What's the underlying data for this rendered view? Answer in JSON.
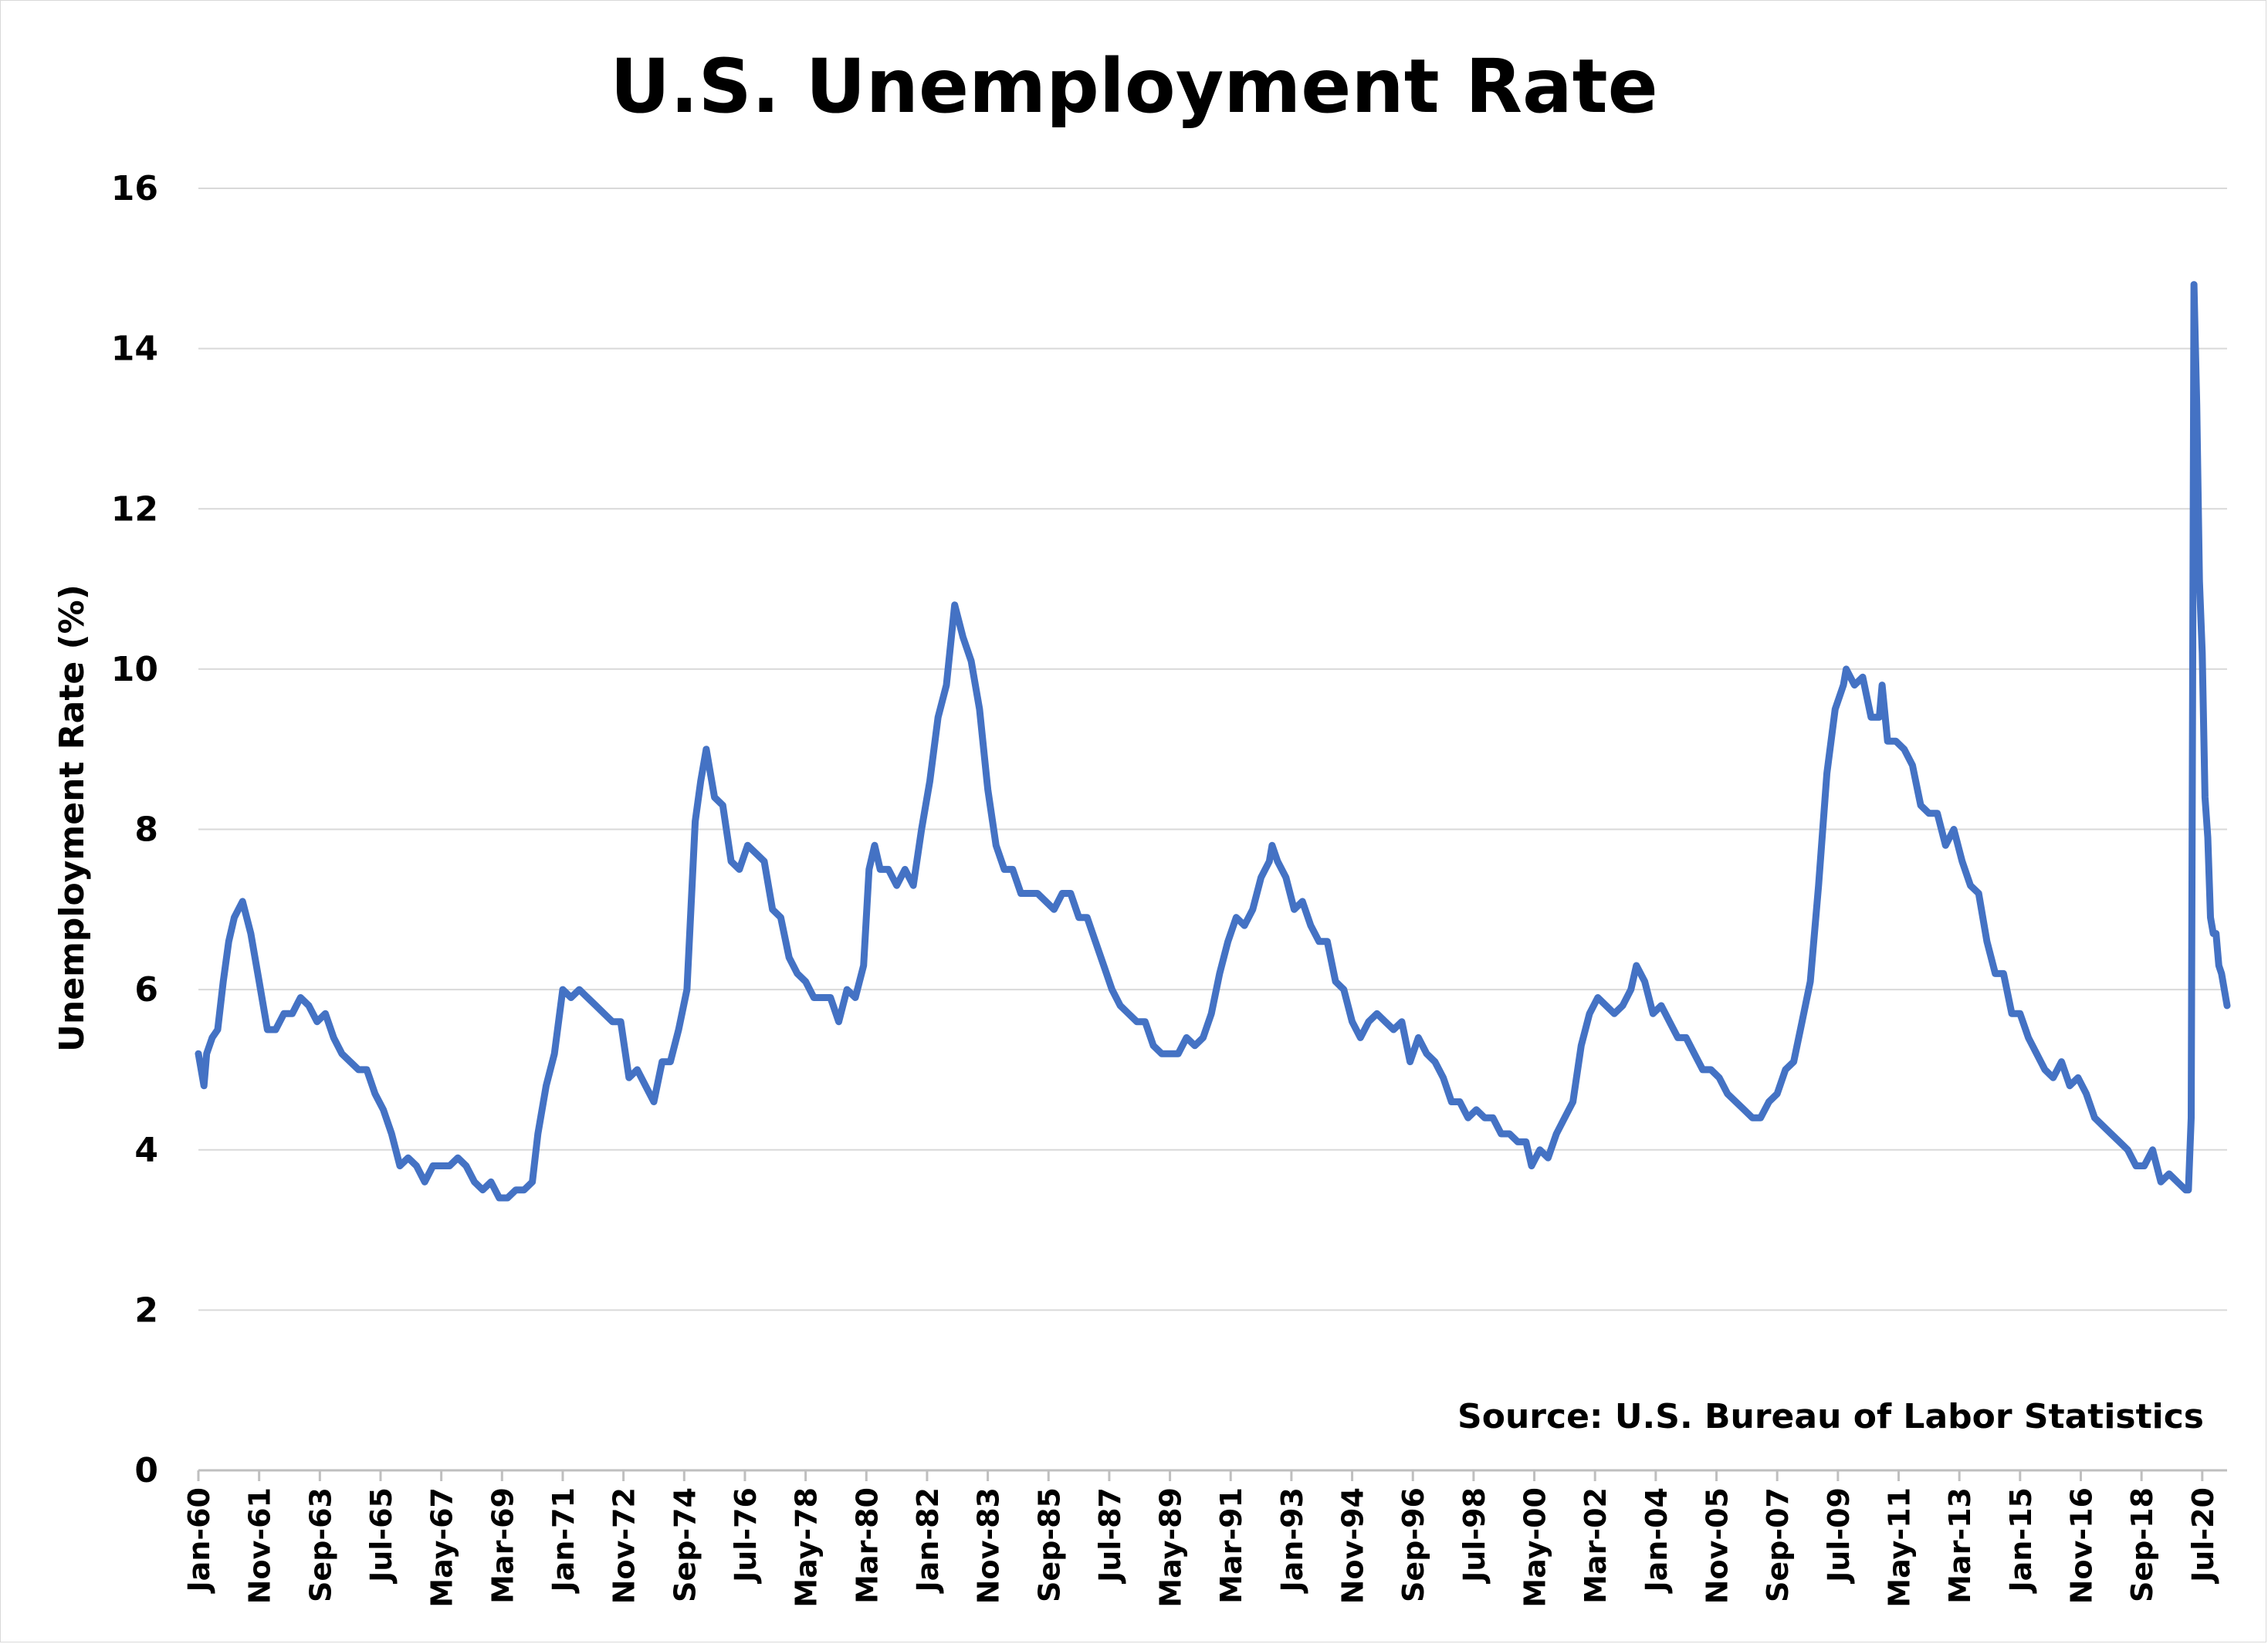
{
  "chart_data": {
    "type": "line",
    "title": "U.S. Unemployment Rate",
    "xlabel": "",
    "ylabel": "Unemployment Rate (%)",
    "source": "Source: U.S. Bureau of Labor Statistics",
    "ylim": [
      0,
      16
    ],
    "yticks": [
      "0",
      "2",
      "4",
      "6",
      "8",
      "10",
      "12",
      "14",
      "16"
    ],
    "grid": true,
    "legend": "none",
    "x_start": "Jan-60",
    "x_end": "Apr-21",
    "xticks": [
      "Jan-60",
      "Nov-61",
      "Sep-63",
      "Jul-65",
      "May-67",
      "Mar-69",
      "Jan-71",
      "Nov-72",
      "Sep-74",
      "Jul-76",
      "May-78",
      "Mar-80",
      "Jan-82",
      "Nov-83",
      "Sep-85",
      "Jul-87",
      "May-89",
      "Mar-91",
      "Jan-93",
      "Nov-94",
      "Sep-96",
      "Jul-98",
      "May-00",
      "Mar-02",
      "Jan-04",
      "Nov-05",
      "Sep-07",
      "Jul-09",
      "May-11",
      "Mar-13",
      "Jan-15",
      "Nov-16",
      "Sep-18",
      "Jul-20"
    ],
    "colors": {
      "line": "#4472c4",
      "grid": "#d9d9d9",
      "axis": "#bfbfbf"
    },
    "series": [
      {
        "points": [
          [
            "Jan-60",
            5.2
          ],
          [
            "Mar-60",
            4.8
          ],
          [
            "Apr-60",
            5.2
          ],
          [
            "Jun-60",
            5.4
          ],
          [
            "Aug-60",
            5.5
          ],
          [
            "Oct-60",
            6.1
          ],
          [
            "Dec-60",
            6.6
          ],
          [
            "Feb-61",
            6.9
          ],
          [
            "May-61",
            7.1
          ],
          [
            "Aug-61",
            6.7
          ],
          [
            "Nov-61",
            6.1
          ],
          [
            "Feb-62",
            5.5
          ],
          [
            "May-62",
            5.5
          ],
          [
            "Aug-62",
            5.7
          ],
          [
            "Nov-62",
            5.7
          ],
          [
            "Feb-63",
            5.9
          ],
          [
            "May-63",
            5.8
          ],
          [
            "Aug-63",
            5.6
          ],
          [
            "Nov-63",
            5.7
          ],
          [
            "Feb-64",
            5.4
          ],
          [
            "May-64",
            5.2
          ],
          [
            "Aug-64",
            5.1
          ],
          [
            "Nov-64",
            5.0
          ],
          [
            "Feb-65",
            5.0
          ],
          [
            "May-65",
            4.7
          ],
          [
            "Aug-65",
            4.5
          ],
          [
            "Nov-65",
            4.2
          ],
          [
            "Feb-66",
            3.8
          ],
          [
            "May-66",
            3.9
          ],
          [
            "Aug-66",
            3.8
          ],
          [
            "Nov-66",
            3.6
          ],
          [
            "Feb-67",
            3.8
          ],
          [
            "May-67",
            3.8
          ],
          [
            "Aug-67",
            3.8
          ],
          [
            "Nov-67",
            3.9
          ],
          [
            "Feb-68",
            3.8
          ],
          [
            "May-68",
            3.6
          ],
          [
            "Aug-68",
            3.5
          ],
          [
            "Nov-68",
            3.6
          ],
          [
            "Feb-69",
            3.4
          ],
          [
            "May-69",
            3.4
          ],
          [
            "Aug-69",
            3.5
          ],
          [
            "Nov-69",
            3.5
          ],
          [
            "Feb-70",
            3.6
          ],
          [
            "Apr-70",
            4.2
          ],
          [
            "Jul-70",
            4.8
          ],
          [
            "Oct-70",
            5.2
          ],
          [
            "Jan-71",
            6.0
          ],
          [
            "Apr-71",
            5.9
          ],
          [
            "Jul-71",
            6.0
          ],
          [
            "Oct-71",
            5.9
          ],
          [
            "Jan-72",
            5.8
          ],
          [
            "Apr-72",
            5.7
          ],
          [
            "Jul-72",
            5.6
          ],
          [
            "Oct-72",
            5.6
          ],
          [
            "Jan-73",
            4.9
          ],
          [
            "Apr-73",
            5.0
          ],
          [
            "Jul-73",
            4.8
          ],
          [
            "Oct-73",
            4.6
          ],
          [
            "Jan-74",
            5.1
          ],
          [
            "Apr-74",
            5.1
          ],
          [
            "Jul-74",
            5.5
          ],
          [
            "Oct-74",
            6.0
          ],
          [
            "Jan-75",
            8.1
          ],
          [
            "Mar-75",
            8.6
          ],
          [
            "May-75",
            9.0
          ],
          [
            "Aug-75",
            8.4
          ],
          [
            "Nov-75",
            8.3
          ],
          [
            "Feb-76",
            7.6
          ],
          [
            "May-76",
            7.5
          ],
          [
            "Aug-76",
            7.8
          ],
          [
            "Nov-76",
            7.7
          ],
          [
            "Feb-77",
            7.6
          ],
          [
            "May-77",
            7.0
          ],
          [
            "Aug-77",
            6.9
          ],
          [
            "Nov-77",
            6.4
          ],
          [
            "Feb-78",
            6.2
          ],
          [
            "May-78",
            6.1
          ],
          [
            "Aug-78",
            5.9
          ],
          [
            "Nov-78",
            5.9
          ],
          [
            "Feb-79",
            5.9
          ],
          [
            "May-79",
            5.6
          ],
          [
            "Aug-79",
            6.0
          ],
          [
            "Nov-79",
            5.9
          ],
          [
            "Feb-80",
            6.3
          ],
          [
            "Apr-80",
            7.5
          ],
          [
            "Jun-80",
            7.8
          ],
          [
            "Aug-80",
            7.5
          ],
          [
            "Nov-80",
            7.5
          ],
          [
            "Feb-81",
            7.3
          ],
          [
            "May-81",
            7.5
          ],
          [
            "Aug-81",
            7.3
          ],
          [
            "Nov-81",
            8.0
          ],
          [
            "Feb-82",
            8.6
          ],
          [
            "May-82",
            9.4
          ],
          [
            "Aug-82",
            9.8
          ],
          [
            "Nov-82",
            10.8
          ],
          [
            "Feb-83",
            10.4
          ],
          [
            "May-83",
            10.1
          ],
          [
            "Aug-83",
            9.5
          ],
          [
            "Nov-83",
            8.5
          ],
          [
            "Feb-84",
            7.8
          ],
          [
            "May-84",
            7.5
          ],
          [
            "Aug-84",
            7.5
          ],
          [
            "Nov-84",
            7.2
          ],
          [
            "Feb-85",
            7.2
          ],
          [
            "May-85",
            7.2
          ],
          [
            "Aug-85",
            7.1
          ],
          [
            "Nov-85",
            7.0
          ],
          [
            "Feb-86",
            7.2
          ],
          [
            "May-86",
            7.2
          ],
          [
            "Aug-86",
            6.9
          ],
          [
            "Nov-86",
            6.9
          ],
          [
            "Feb-87",
            6.6
          ],
          [
            "May-87",
            6.3
          ],
          [
            "Aug-87",
            6.0
          ],
          [
            "Nov-87",
            5.8
          ],
          [
            "Feb-88",
            5.7
          ],
          [
            "May-88",
            5.6
          ],
          [
            "Aug-88",
            5.6
          ],
          [
            "Nov-88",
            5.3
          ],
          [
            "Feb-89",
            5.2
          ],
          [
            "May-89",
            5.2
          ],
          [
            "Aug-89",
            5.2
          ],
          [
            "Nov-89",
            5.4
          ],
          [
            "Feb-90",
            5.3
          ],
          [
            "May-90",
            5.4
          ],
          [
            "Aug-90",
            5.7
          ],
          [
            "Nov-90",
            6.2
          ],
          [
            "Feb-91",
            6.6
          ],
          [
            "May-91",
            6.9
          ],
          [
            "Aug-91",
            6.8
          ],
          [
            "Nov-91",
            7.0
          ],
          [
            "Feb-92",
            7.4
          ],
          [
            "May-92",
            7.6
          ],
          [
            "Jun-92",
            7.8
          ],
          [
            "Aug-92",
            7.6
          ],
          [
            "Nov-92",
            7.4
          ],
          [
            "Feb-93",
            7.0
          ],
          [
            "May-93",
            7.1
          ],
          [
            "Aug-93",
            6.8
          ],
          [
            "Nov-93",
            6.6
          ],
          [
            "Feb-94",
            6.6
          ],
          [
            "May-94",
            6.1
          ],
          [
            "Aug-94",
            6.0
          ],
          [
            "Nov-94",
            5.6
          ],
          [
            "Feb-95",
            5.4
          ],
          [
            "May-95",
            5.6
          ],
          [
            "Aug-95",
            5.7
          ],
          [
            "Nov-95",
            5.6
          ],
          [
            "Feb-96",
            5.5
          ],
          [
            "May-96",
            5.6
          ],
          [
            "Aug-96",
            5.1
          ],
          [
            "Nov-96",
            5.4
          ],
          [
            "Feb-97",
            5.2
          ],
          [
            "May-97",
            5.1
          ],
          [
            "Aug-97",
            4.9
          ],
          [
            "Nov-97",
            4.6
          ],
          [
            "Feb-98",
            4.6
          ],
          [
            "May-98",
            4.4
          ],
          [
            "Aug-98",
            4.5
          ],
          [
            "Nov-98",
            4.4
          ],
          [
            "Feb-99",
            4.4
          ],
          [
            "May-99",
            4.2
          ],
          [
            "Aug-99",
            4.2
          ],
          [
            "Nov-99",
            4.1
          ],
          [
            "Feb-00",
            4.1
          ],
          [
            "Apr-00",
            3.8
          ],
          [
            "Jul-00",
            4.0
          ],
          [
            "Oct-00",
            3.9
          ],
          [
            "Jan-01",
            4.2
          ],
          [
            "Apr-01",
            4.4
          ],
          [
            "Jul-01",
            4.6
          ],
          [
            "Oct-01",
            5.3
          ],
          [
            "Jan-02",
            5.7
          ],
          [
            "Apr-02",
            5.9
          ],
          [
            "Jul-02",
            5.8
          ],
          [
            "Oct-02",
            5.7
          ],
          [
            "Jan-03",
            5.8
          ],
          [
            "Apr-03",
            6.0
          ],
          [
            "Jun-03",
            6.3
          ],
          [
            "Sep-03",
            6.1
          ],
          [
            "Dec-03",
            5.7
          ],
          [
            "Mar-04",
            5.8
          ],
          [
            "Jun-04",
            5.6
          ],
          [
            "Sep-04",
            5.4
          ],
          [
            "Dec-04",
            5.4
          ],
          [
            "Mar-05",
            5.2
          ],
          [
            "Jun-05",
            5.0
          ],
          [
            "Sep-05",
            5.0
          ],
          [
            "Dec-05",
            4.9
          ],
          [
            "Mar-06",
            4.7
          ],
          [
            "Jun-06",
            4.6
          ],
          [
            "Sep-06",
            4.5
          ],
          [
            "Dec-06",
            4.4
          ],
          [
            "Mar-07",
            4.4
          ],
          [
            "Jun-07",
            4.6
          ],
          [
            "Sep-07",
            4.7
          ],
          [
            "Dec-07",
            5.0
          ],
          [
            "Mar-08",
            5.1
          ],
          [
            "Jun-08",
            5.6
          ],
          [
            "Sep-08",
            6.1
          ],
          [
            "Dec-08",
            7.3
          ],
          [
            "Mar-09",
            8.7
          ],
          [
            "Jun-09",
            9.5
          ],
          [
            "Sep-09",
            9.8
          ],
          [
            "Oct-09",
            10.0
          ],
          [
            "Jan-10",
            9.8
          ],
          [
            "Apr-10",
            9.9
          ],
          [
            "Jul-10",
            9.4
          ],
          [
            "Oct-10",
            9.4
          ],
          [
            "Nov-10",
            9.8
          ],
          [
            "Jan-11",
            9.1
          ],
          [
            "Apr-11",
            9.1
          ],
          [
            "Jul-11",
            9.0
          ],
          [
            "Oct-11",
            8.8
          ],
          [
            "Jan-12",
            8.3
          ],
          [
            "Apr-12",
            8.2
          ],
          [
            "Jul-12",
            8.2
          ],
          [
            "Oct-12",
            7.8
          ],
          [
            "Jan-13",
            8.0
          ],
          [
            "Apr-13",
            7.6
          ],
          [
            "Jul-13",
            7.3
          ],
          [
            "Oct-13",
            7.2
          ],
          [
            "Jan-14",
            6.6
          ],
          [
            "Apr-14",
            6.2
          ],
          [
            "Jul-14",
            6.2
          ],
          [
            "Oct-14",
            5.7
          ],
          [
            "Jan-15",
            5.7
          ],
          [
            "Apr-15",
            5.4
          ],
          [
            "Jul-15",
            5.2
          ],
          [
            "Oct-15",
            5.0
          ],
          [
            "Jan-16",
            4.9
          ],
          [
            "Apr-16",
            5.1
          ],
          [
            "Jul-16",
            4.8
          ],
          [
            "Oct-16",
            4.9
          ],
          [
            "Jan-17",
            4.7
          ],
          [
            "Apr-17",
            4.4
          ],
          [
            "Jul-17",
            4.3
          ],
          [
            "Oct-17",
            4.2
          ],
          [
            "Jan-18",
            4.1
          ],
          [
            "Apr-18",
            4.0
          ],
          [
            "Jul-18",
            3.8
          ],
          [
            "Oct-18",
            3.8
          ],
          [
            "Jan-19",
            4.0
          ],
          [
            "Apr-19",
            3.6
          ],
          [
            "Jul-19",
            3.7
          ],
          [
            "Oct-19",
            3.6
          ],
          [
            "Jan-20",
            3.5
          ],
          [
            "Feb-20",
            3.5
          ],
          [
            "Mar-20",
            4.4
          ],
          [
            "Apr-20",
            14.8
          ],
          [
            "May-20",
            13.3
          ],
          [
            "Jun-20",
            11.1
          ],
          [
            "Jul-20",
            10.2
          ],
          [
            "Aug-20",
            8.4
          ],
          [
            "Sep-20",
            7.9
          ],
          [
            "Oct-20",
            6.9
          ],
          [
            "Nov-20",
            6.7
          ],
          [
            "Dec-20",
            6.7
          ],
          [
            "Jan-21",
            6.3
          ],
          [
            "Feb-21",
            6.2
          ],
          [
            "Mar-21",
            6.0
          ],
          [
            "Apr-21",
            5.8
          ]
        ]
      }
    ]
  }
}
